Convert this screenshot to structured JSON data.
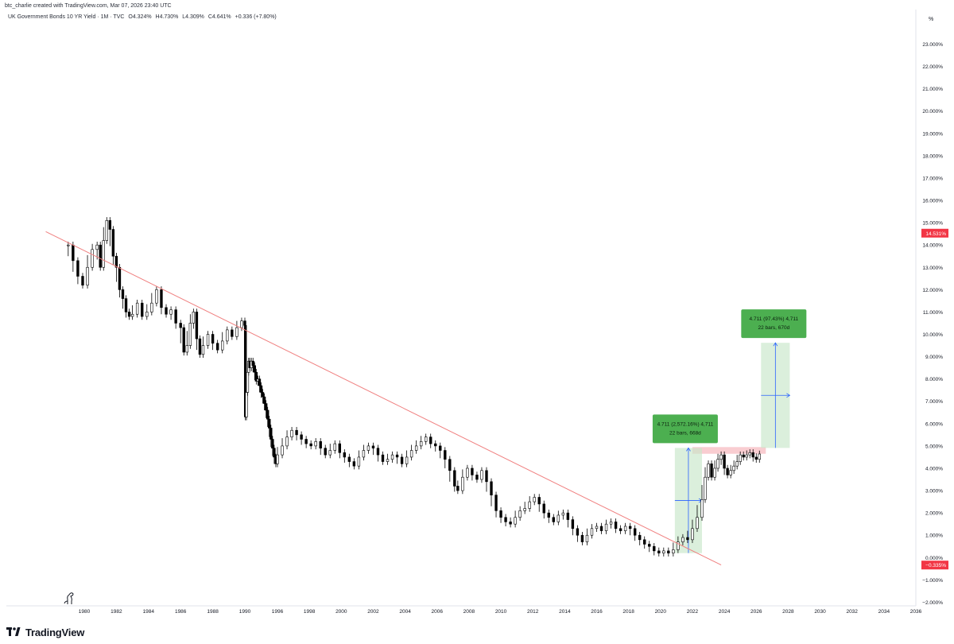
{
  "header": {
    "credit": "btc_charlie created with TradingView.com, Mar 07, 2026 23:40 UTC"
  },
  "legend": {
    "symbol": "UK Government Bonds 10 YR Yield · 1M · TVC",
    "open": "O4.324%",
    "high": "H4.730%",
    "low": "L4.309%",
    "close": "C4.641%",
    "change": "+0.336 (+7.80%)"
  },
  "brand": {
    "name": "TradingView"
  },
  "colors": {
    "candle": "#000000",
    "trendline": "#f08080",
    "price_tag": "#f23645",
    "measure_box": "#c8e6c9",
    "measure_label": "#4caf50",
    "resistance_zone": "#f8c8cc",
    "measure_arrow": "#2962ff"
  },
  "chart_data": {
    "type": "candlestick",
    "title": "UK Government Bonds 10 YR Yield · 1M · TVC",
    "y_unit": "%",
    "ylim": [
      -2.5,
      23.8
    ],
    "x_tick_labels": [
      "1980",
      "1982",
      "1984",
      "1986",
      "1988",
      "1990",
      "1996",
      "1998",
      "2000",
      "2002",
      "2004",
      "2006",
      "2008",
      "2010",
      "2012",
      "2014",
      "2016",
      "2018",
      "2020",
      "2022",
      "2024",
      "2026",
      "2028",
      "2030",
      "2032",
      "2034",
      "2036"
    ],
    "y_ticks": [
      -2,
      -1,
      0,
      1,
      2,
      3,
      4,
      5,
      6,
      7,
      8,
      9,
      10,
      11,
      12,
      13,
      14,
      15,
      16,
      17,
      18,
      19,
      20,
      21,
      22,
      23
    ],
    "y_tick_labels": [
      "−2.000%",
      "−1.000%",
      "0.000%",
      "1.000%",
      "2.000%",
      "3.000%",
      "4.000%",
      "5.000%",
      "6.000%",
      "7.000%",
      "8.000%",
      "9.000%",
      "10.000%",
      "11.000%",
      "12.000%",
      "13.000%",
      "14.000%",
      "15.000%",
      "16.000%",
      "17.000%",
      "18.000%",
      "19.000%",
      "20.000%",
      "21.000%",
      "22.000%",
      "23.000%"
    ],
    "series": [
      {
        "points": [
          [
            1979.0,
            14.0
          ],
          [
            1979.3,
            13.3
          ],
          [
            1979.6,
            12.6
          ],
          [
            1979.9,
            12.2
          ],
          [
            1980.2,
            13.0
          ],
          [
            1980.5,
            13.8
          ],
          [
            1980.8,
            14.0
          ],
          [
            1981.0,
            13.0
          ],
          [
            1981.2,
            14.2
          ],
          [
            1981.4,
            15.1
          ],
          [
            1981.6,
            14.7
          ],
          [
            1981.8,
            13.5
          ],
          [
            1982.0,
            13.0
          ],
          [
            1982.2,
            12.0
          ],
          [
            1982.4,
            11.6
          ],
          [
            1982.6,
            11.0
          ],
          [
            1982.8,
            10.8
          ],
          [
            1983.0,
            10.9
          ],
          [
            1983.3,
            11.4
          ],
          [
            1983.6,
            10.8
          ],
          [
            1983.9,
            11.0
          ],
          [
            1984.2,
            11.4
          ],
          [
            1984.5,
            12.0
          ],
          [
            1984.8,
            11.2
          ],
          [
            1985.1,
            10.9
          ],
          [
            1985.4,
            11.1
          ],
          [
            1985.7,
            10.5
          ],
          [
            1986.0,
            10.3
          ],
          [
            1986.2,
            9.2
          ],
          [
            1986.4,
            9.5
          ],
          [
            1986.6,
            10.5
          ],
          [
            1986.8,
            11.0
          ],
          [
            1987.0,
            9.8
          ],
          [
            1987.2,
            9.1
          ],
          [
            1987.4,
            9.5
          ],
          [
            1987.7,
            10.0
          ],
          [
            1988.0,
            9.6
          ],
          [
            1988.3,
            9.3
          ],
          [
            1988.6,
            9.7
          ],
          [
            1988.9,
            10.2
          ],
          [
            1989.2,
            9.9
          ],
          [
            1989.5,
            10.3
          ],
          [
            1989.8,
            10.6
          ],
          [
            1990.0,
            10.4
          ],
          [
            1990.1,
            6.3
          ],
          [
            1990.3,
            7.4
          ],
          [
            1990.5,
            8.3
          ],
          [
            1990.7,
            8.8
          ],
          [
            1990.9,
            8.5
          ],
          [
            1991.2,
            8.8
          ],
          [
            1991.5,
            8.6
          ],
          [
            1991.8,
            8.3
          ],
          [
            1992.1,
            7.9
          ],
          [
            1992.4,
            8.0
          ],
          [
            1992.7,
            7.7
          ],
          [
            1993.0,
            7.4
          ],
          [
            1993.3,
            7.2
          ],
          [
            1993.6,
            6.9
          ],
          [
            1993.9,
            6.6
          ],
          [
            1994.2,
            6.2
          ],
          [
            1994.5,
            5.8
          ],
          [
            1994.8,
            5.3
          ],
          [
            1995.1,
            4.9
          ],
          [
            1995.4,
            4.5
          ],
          [
            1995.7,
            4.2
          ],
          [
            1996.0,
            4.6
          ],
          [
            1996.3,
            5.0
          ],
          [
            1996.6,
            5.4
          ],
          [
            1996.9,
            5.7
          ],
          [
            1997.2,
            5.5
          ],
          [
            1997.5,
            5.3
          ],
          [
            1997.8,
            5.1
          ],
          [
            1998.1,
            5.0
          ],
          [
            1998.4,
            5.2
          ],
          [
            1998.7,
            4.9
          ],
          [
            1999.0,
            4.6
          ],
          [
            1999.3,
            4.8
          ],
          [
            1999.6,
            5.1
          ],
          [
            1999.9,
            4.7
          ],
          [
            2000.2,
            4.5
          ],
          [
            2000.5,
            4.3
          ],
          [
            2000.8,
            4.1
          ],
          [
            2001.1,
            4.5
          ],
          [
            2001.4,
            4.8
          ],
          [
            2001.7,
            5.0
          ],
          [
            2002.0,
            4.9
          ],
          [
            2002.3,
            4.6
          ],
          [
            2002.6,
            4.3
          ],
          [
            2002.9,
            4.4
          ],
          [
            2003.2,
            4.6
          ],
          [
            2003.5,
            4.5
          ],
          [
            2003.8,
            4.2
          ],
          [
            2004.1,
            4.5
          ],
          [
            2004.4,
            4.8
          ],
          [
            2004.7,
            5.0
          ],
          [
            2005.0,
            5.2
          ],
          [
            2005.3,
            5.4
          ],
          [
            2005.6,
            5.1
          ],
          [
            2005.9,
            5.0
          ],
          [
            2006.2,
            4.8
          ],
          [
            2006.5,
            4.4
          ],
          [
            2006.8,
            3.9
          ],
          [
            2007.1,
            3.2
          ],
          [
            2007.3,
            3.0
          ],
          [
            2007.6,
            3.6
          ],
          [
            2007.9,
            4.0
          ],
          [
            2008.2,
            3.7
          ],
          [
            2008.5,
            3.5
          ],
          [
            2008.8,
            3.9
          ],
          [
            2009.1,
            3.4
          ],
          [
            2009.4,
            2.8
          ],
          [
            2009.7,
            2.1
          ],
          [
            2010.0,
            1.8
          ],
          [
            2010.3,
            1.6
          ],
          [
            2010.6,
            1.5
          ],
          [
            2010.9,
            1.8
          ],
          [
            2011.2,
            2.1
          ],
          [
            2011.5,
            2.2
          ],
          [
            2011.8,
            2.5
          ],
          [
            2012.1,
            2.7
          ],
          [
            2012.4,
            2.4
          ],
          [
            2012.7,
            2.0
          ],
          [
            2013.0,
            1.8
          ],
          [
            2013.3,
            1.6
          ],
          [
            2013.6,
            1.9
          ],
          [
            2013.9,
            2.0
          ],
          [
            2014.2,
            1.7
          ],
          [
            2014.5,
            1.3
          ],
          [
            2014.8,
            1.0
          ],
          [
            2015.1,
            0.7
          ],
          [
            2015.4,
            1.0
          ],
          [
            2015.7,
            1.3
          ],
          [
            2016.0,
            1.4
          ],
          [
            2016.3,
            1.2
          ],
          [
            2016.6,
            1.5
          ],
          [
            2016.9,
            1.6
          ],
          [
            2017.2,
            1.3
          ],
          [
            2017.5,
            1.2
          ],
          [
            2017.8,
            1.4
          ],
          [
            2018.1,
            1.3
          ],
          [
            2018.4,
            1.0
          ],
          [
            2018.7,
            0.8
          ],
          [
            2019.0,
            0.6
          ],
          [
            2019.3,
            0.5
          ],
          [
            2019.6,
            0.3
          ],
          [
            2019.9,
            0.2
          ],
          [
            2020.2,
            0.3
          ],
          [
            2020.5,
            0.2
          ],
          [
            2020.8,
            0.35
          ],
          [
            2021.1,
            0.7
          ],
          [
            2021.4,
            0.9
          ],
          [
            2021.7,
            0.8
          ],
          [
            2022.0,
            1.3
          ],
          [
            2022.3,
            1.8
          ],
          [
            2022.6,
            2.6
          ],
          [
            2022.8,
            3.6
          ],
          [
            2023.0,
            4.2
          ],
          [
            2023.2,
            3.6
          ],
          [
            2023.4,
            4.0
          ],
          [
            2023.6,
            4.4
          ],
          [
            2023.8,
            4.6
          ],
          [
            2024.0,
            4.0
          ],
          [
            2024.2,
            3.7
          ],
          [
            2024.4,
            3.9
          ],
          [
            2024.6,
            4.1
          ],
          [
            2024.8,
            4.3
          ],
          [
            2025.0,
            4.6
          ],
          [
            2025.2,
            4.5
          ],
          [
            2025.4,
            4.6
          ],
          [
            2025.6,
            4.7
          ],
          [
            2025.8,
            4.5
          ],
          [
            2026.0,
            4.4
          ],
          [
            2026.2,
            4.64
          ]
        ]
      }
    ],
    "annotations": [
      {
        "type": "trendline",
        "from": [
          1977.6,
          14.6
        ],
        "to": [
          2023.8,
          -0.33
        ]
      },
      {
        "type": "price_tag",
        "value": 14.531,
        "label": "14.531%"
      },
      {
        "type": "price_tag",
        "value": -0.335,
        "label": "−0.335%"
      },
      {
        "type": "measure",
        "x_range": [
          2020.9,
          2022.6
        ],
        "y_range": [
          0.2,
          4.911
        ],
        "label_line1": "4.711 (2,572.16%) 4,711",
        "label_line2": "22 bars, 668d"
      },
      {
        "type": "measure",
        "x_range": [
          2026.3,
          2028.1
        ],
        "y_range": [
          4.911,
          9.62
        ],
        "label_line1": "4.711 (97.43%) 4,711",
        "label_line2": "22 bars, 670d"
      },
      {
        "type": "zone",
        "x_range": [
          2022.0,
          2026.6
        ],
        "y_range": [
          4.65,
          4.95
        ]
      }
    ]
  }
}
